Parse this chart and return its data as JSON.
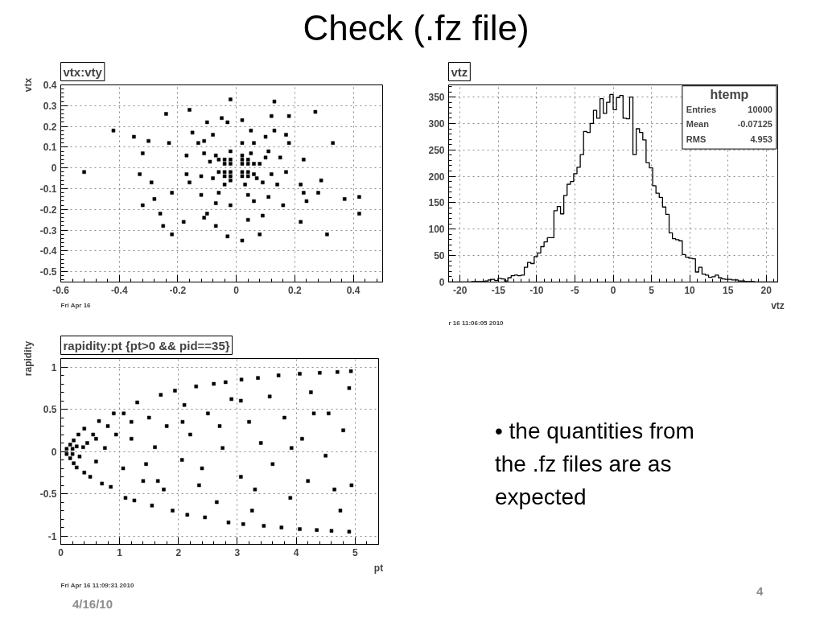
{
  "chart_data": [
    {
      "type": "other",
      "title": "Check (.fz file)"
    },
    {
      "type": "scatter",
      "title": "vtx:vty",
      "ylabel": "vtx",
      "color": "#000000",
      "marker": "square",
      "xlim": [
        -0.6,
        0.5
      ],
      "ylim": [
        -0.55,
        0.4
      ],
      "xticks": [
        -0.6,
        -0.4,
        -0.2,
        0,
        0.2,
        0.4
      ],
      "yticks": [
        -0.5,
        -0.4,
        -0.3,
        -0.2,
        -0.1,
        0,
        0.1,
        0.2,
        0.3,
        0.4
      ],
      "grid": true,
      "annotations": [
        "Fri Apr 16"
      ],
      "x": [
        -0.02,
        -0.16,
        0.27,
        -0.24,
        -0.1,
        -0.42,
        -0.3,
        -0.35,
        0.33,
        -0.32,
        -0.52,
        -0.33,
        -0.29,
        0.29,
        0.28,
        -0.28,
        0.37,
        0.42,
        -0.32,
        -0.26,
        0.22,
        -0.25,
        -0.22,
        -0.07,
        -0.03,
        0.02,
        0.08,
        0.31,
        0.18,
        0.12,
        0.13,
        0.42,
        0.24,
        -0.18,
        -0.11,
        0.04,
        0.15,
        0.17,
        0.14,
        0.18,
        0.1,
        0.05,
        -0.03,
        -0.08,
        -0.13,
        -0.17,
        -0.17,
        -0.16,
        -0.12,
        -0.07,
        -0.02,
        0.06,
        0.11,
        0.22,
        0.23,
        -0.23,
        -0.1,
        0.09,
        0.13,
        -0.15,
        0.16,
        -0.05,
        0.02,
        -0.22,
        0.23,
        0.17,
        0.08,
        0.07,
        0.05,
        -0.02,
        -0.07,
        -0.09,
        -0.08,
        -0.04,
        0.03,
        0.09,
        0.1,
        -0.11,
        0.06,
        -0.06,
        0.12,
        -0.12,
        0.02,
        0.04,
        -0.11,
        0.11,
        -0.04,
        -0.04,
        -0.04,
        -0.04,
        -0.02,
        -0.02,
        -0.02,
        -0.02,
        0.02,
        0.02,
        0.02,
        0.02,
        0.04,
        0.04,
        0.04,
        0.04,
        0.06,
        -0.06,
        0.02,
        -0.02,
        0.06,
        -0.06
      ],
      "values": [
        0.33,
        0.28,
        0.27,
        0.26,
        0.22,
        0.18,
        0.13,
        0.15,
        0.12,
        0.07,
        -0.02,
        -0.03,
        -0.07,
        -0.06,
        -0.12,
        -0.15,
        -0.15,
        -0.14,
        -0.18,
        -0.22,
        -0.26,
        -0.28,
        -0.32,
        -0.28,
        -0.33,
        -0.35,
        -0.32,
        -0.32,
        0.25,
        0.25,
        0.32,
        -0.22,
        -0.16,
        -0.26,
        -0.24,
        -0.25,
        0.05,
        -0.02,
        -0.08,
        0.12,
        0.15,
        0.18,
        0.22,
        0.16,
        0.12,
        0.06,
        -0.03,
        -0.07,
        -0.13,
        -0.17,
        -0.18,
        -0.16,
        -0.14,
        -0.08,
        0.04,
        0.12,
        -0.22,
        -0.23,
        0.18,
        0.17,
        -0.18,
        0.24,
        0.23,
        -0.12,
        -0.12,
        0.16,
        0.02,
        -0.05,
        0.07,
        0.08,
        0.06,
        0.03,
        -0.05,
        -0.08,
        -0.08,
        -0.07,
        0.05,
        0.07,
        0.12,
        -0.12,
        -0.03,
        -0.04,
        0.12,
        -0.13,
        0.13,
        0.08,
        -0.04,
        -0.02,
        0.02,
        0.04,
        -0.04,
        -0.02,
        0.02,
        0.04,
        -0.04,
        -0.02,
        0.02,
        0.04,
        -0.04,
        -0.02,
        0.02,
        0.04,
        0.02,
        -0.02,
        0.06,
        -0.06,
        -0.03,
        0.04
      ]
    },
    {
      "type": "histogram",
      "title": "vtz",
      "xlabel": "vtz",
      "color": "#000000",
      "xlim": [
        -21.5,
        21.5
      ],
      "ylim": [
        0,
        373
      ],
      "xticks": [
        -20,
        -15,
        -10,
        -5,
        0,
        5,
        10,
        15,
        20
      ],
      "yticks": [
        0,
        50,
        100,
        150,
        200,
        250,
        300,
        350
      ],
      "grid": true,
      "annotations": [
        "htemp",
        "Entries 10000",
        "Mean -0.07125",
        "RMS 4.953",
        "r 16 11:06:05 2010"
      ],
      "bins": [
        -21.5,
        -21.07,
        -20.64,
        -20.21,
        -19.78,
        -19.35,
        -18.92,
        -18.49,
        -18.06,
        -17.63,
        -17.2,
        -16.77,
        -16.34,
        -15.91,
        -15.48,
        -15.05,
        -14.62,
        -14.19,
        -13.76,
        -13.33,
        -12.9,
        -12.47,
        -12.04,
        -11.61,
        -11.18,
        -10.75,
        -10.32,
        -9.89,
        -9.46,
        -9.03,
        -8.6,
        -8.17,
        -7.74,
        -7.31,
        -6.88,
        -6.45,
        -6.02,
        -5.59,
        -5.16,
        -4.73,
        -4.3,
        -3.87,
        -3.44,
        -3.01,
        -2.58,
        -2.15,
        -1.72,
        -1.29,
        -0.86,
        -0.43,
        0,
        0.43,
        0.86,
        1.29,
        1.72,
        2.15,
        2.58,
        3.01,
        3.44,
        3.87,
        4.3,
        4.73,
        5.16,
        5.59,
        6.02,
        6.45,
        6.88,
        7.31,
        7.74,
        8.17,
        8.6,
        9.03,
        9.46,
        9.89,
        10.32,
        10.75,
        11.18,
        11.61,
        12.04,
        12.47,
        12.9,
        13.33,
        13.76,
        14.19,
        14.62,
        15.05,
        15.48,
        15.91,
        16.34,
        16.77,
        17.2,
        17.63,
        18.06,
        18.49,
        18.92,
        19.35,
        19.78,
        20.21,
        20.64,
        21.07,
        21.5
      ],
      "values": [
        0,
        0,
        0,
        0,
        0,
        0,
        0,
        1,
        1,
        1,
        1,
        2,
        4,
        5,
        3,
        7,
        6,
        2,
        8,
        12,
        13,
        12,
        13,
        28,
        37,
        35,
        48,
        55,
        67,
        76,
        84,
        84,
        135,
        143,
        129,
        164,
        185,
        190,
        205,
        217,
        241,
        285,
        283,
        300,
        325,
        310,
        347,
        319,
        340,
        355,
        326,
        349,
        353,
        310,
        309,
        350,
        241,
        290,
        283,
        269,
        226,
        216,
        182,
        168,
        160,
        142,
        128,
        93,
        82,
        80,
        78,
        52,
        47,
        45,
        44,
        19,
        28,
        15,
        13,
        9,
        10,
        13,
        8,
        6,
        5,
        5,
        4,
        4,
        2,
        2,
        1,
        1,
        1,
        0,
        0,
        0,
        0,
        0,
        0,
        0
      ]
    },
    {
      "type": "scatter",
      "title": "rapidity:pt {pt>0 && pid==35}",
      "xlabel": "pt",
      "ylabel": "rapidity",
      "color": "#000000",
      "marker": "square",
      "xlim": [
        0,
        5.4
      ],
      "ylim": [
        -1.1,
        1.1
      ],
      "xticks": [
        0,
        1,
        2,
        3,
        4,
        5
      ],
      "yticks": [
        -1,
        -0.5,
        0,
        0.5,
        1
      ],
      "grid": true,
      "annotations": [
        "Fri Apr 16 11:09:31 2010"
      ],
      "x": [
        0.1,
        0.1,
        0.16,
        0.16,
        0.2,
        0.2,
        0.22,
        0.22,
        0.27,
        0.27,
        0.3,
        0.32,
        0.4,
        0.4,
        0.45,
        0.5,
        0.55,
        0.6,
        0.65,
        0.7,
        0.75,
        0.8,
        0.85,
        0.9,
        1.06,
        1.07,
        1.1,
        1.2,
        1.25,
        1.3,
        1.4,
        1.5,
        1.55,
        1.6,
        1.7,
        1.75,
        1.8,
        1.9,
        1.94,
        2.06,
        2.1,
        2.15,
        2.2,
        2.3,
        2.35,
        2.45,
        2.5,
        2.6,
        2.65,
        2.75,
        2.8,
        2.85,
        2.9,
        3.06,
        3.07,
        3.1,
        3.2,
        3.25,
        3.35,
        3.4,
        3.45,
        3.55,
        3.6,
        3.7,
        3.75,
        3.8,
        3.9,
        4.06,
        4.06,
        4.1,
        4.2,
        4.25,
        4.35,
        4.4,
        4.5,
        4.55,
        4.6,
        4.7,
        4.75,
        4.8,
        4.9,
        4.93,
        4.94,
        4.9,
        1.2,
        1.45,
        2.07,
        2.4,
        3.06,
        3.3,
        3.92,
        4.3,
        4.65,
        2.7,
        1.65,
        0.94,
        0.6,
        0.38
      ],
      "values": [
        0.03,
        -0.03,
        0.08,
        -0.08,
        0.03,
        -0.03,
        0.13,
        -0.14,
        0.06,
        -0.19,
        0.2,
        -0.06,
        0.27,
        -0.25,
        0.1,
        -0.3,
        0.2,
        -0.12,
        0.36,
        -0.38,
        0.04,
        0.3,
        -0.42,
        0.45,
        -0.2,
        0.45,
        -0.55,
        0.15,
        -0.58,
        0.58,
        -0.35,
        0.4,
        -0.64,
        0.05,
        0.67,
        -0.45,
        0.3,
        -0.7,
        0.72,
        -0.1,
        0.55,
        -0.75,
        0.2,
        0.77,
        -0.4,
        -0.78,
        0.45,
        0.8,
        -0.6,
        0.04,
        0.82,
        -0.84,
        0.62,
        -0.3,
        0.85,
        -0.86,
        0.35,
        -0.7,
        0.87,
        0.1,
        -0.88,
        0.65,
        -0.15,
        0.9,
        -0.9,
        0.4,
        -0.55,
        0.92,
        -0.92,
        0.15,
        -0.35,
        0.7,
        -0.93,
        0.93,
        -0.05,
        0.45,
        -0.94,
        0.94,
        -0.7,
        0.25,
        -0.95,
        0.95,
        -0.4,
        0.75,
        0.35,
        -0.15,
        0.35,
        -0.2,
        0.6,
        -0.45,
        0.04,
        0.45,
        -0.45,
        0.3,
        -0.35,
        0.2,
        0.15,
        0.05
      ]
    },
    {
      "type": "other",
      "annotations": [
        "• the quantities from the .fz files are as expected",
        "4/16/10",
        "4"
      ]
    }
  ]
}
